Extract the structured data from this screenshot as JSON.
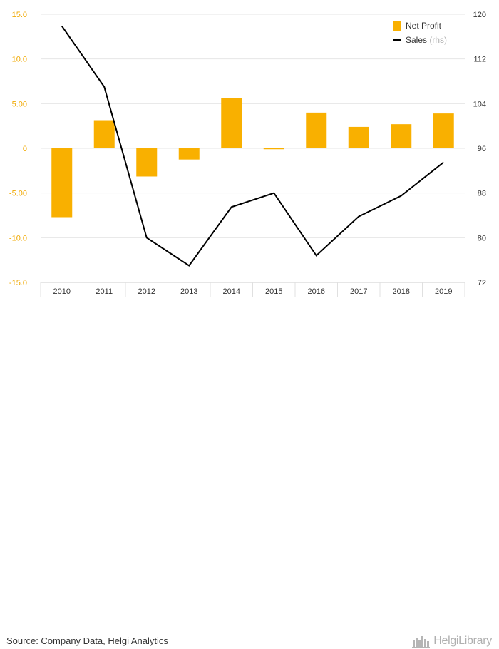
{
  "chart_data": {
    "type": "bar",
    "categories": [
      "2010",
      "2011",
      "2012",
      "2013",
      "2014",
      "2015",
      "2016",
      "2017",
      "2018",
      "2019"
    ],
    "series": [
      {
        "name": "Net Profit",
        "type": "bar",
        "axis": "left",
        "color": "#f9b000",
        "values": [
          -7.7,
          3.15,
          -3.15,
          -1.25,
          5.6,
          -0.1,
          4.0,
          2.4,
          2.7,
          3.9
        ]
      },
      {
        "name": "Sales",
        "legend_suffix": "(rhs)",
        "type": "line",
        "axis": "right",
        "color": "#000000",
        "values": [
          117.9,
          107.0,
          80.0,
          75.0,
          85.5,
          88.0,
          76.8,
          83.8,
          87.5,
          93.5
        ]
      }
    ],
    "y_left": {
      "range": [
        -15,
        15
      ],
      "ticks": [
        15,
        10,
        5,
        0,
        -5,
        -10,
        -15
      ],
      "tick_labels": [
        "15.0",
        "10.0",
        "5.00",
        "0",
        "-5.00",
        "-10.0",
        "-15.0"
      ],
      "color": "#f0a800"
    },
    "y_right": {
      "range": [
        72,
        120
      ],
      "ticks": [
        120,
        112,
        104,
        96,
        88,
        80,
        72
      ],
      "tick_labels": [
        "120",
        "112",
        "104",
        "96",
        "88",
        "80",
        "72"
      ],
      "color": "#333333"
    },
    "grid": true,
    "legend_position": "top-right"
  },
  "footer": {
    "source": "Source: Company Data, Helgi Analytics",
    "logo_text": "HelgiLibrary"
  },
  "icons": {
    "logo": "helgi-library-logo-icon"
  }
}
